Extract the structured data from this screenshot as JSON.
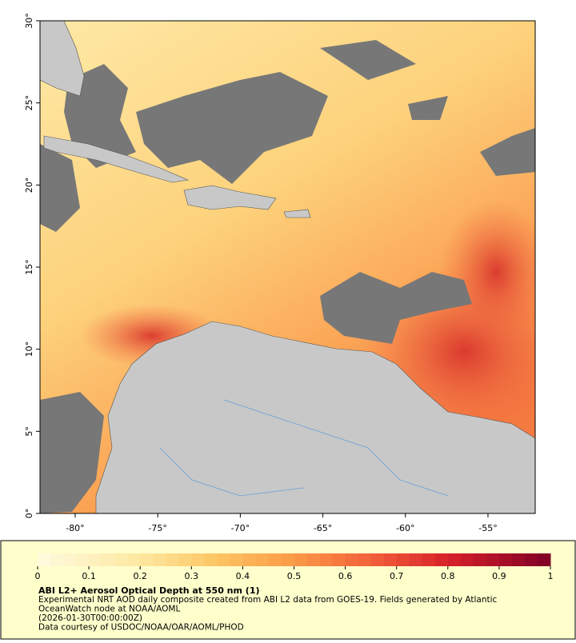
{
  "map": {
    "xlim": [
      -82.13,
      -52.14
    ],
    "ylim": [
      0,
      30
    ],
    "xticks": [
      {
        "value": -80,
        "label": "-80°"
      },
      {
        "value": -75,
        "label": "-75°"
      },
      {
        "value": -70,
        "label": "-70°"
      },
      {
        "value": -65,
        "label": "-65°"
      },
      {
        "value": -60,
        "label": "-60°"
      },
      {
        "value": -55,
        "label": "-55°"
      }
    ],
    "yticks": [
      {
        "value": 0,
        "label": "0°"
      },
      {
        "value": 5,
        "label": "5°"
      },
      {
        "value": 10,
        "label": "10°"
      },
      {
        "value": 15,
        "label": "15°"
      },
      {
        "value": 20,
        "label": "20°"
      },
      {
        "value": 25,
        "label": "25°"
      },
      {
        "value": 30,
        "label": "30°"
      }
    ]
  },
  "legend": {
    "title": "ABI L2+ Aerosol Optical Depth at 550 nm (1)",
    "notes": [
      "Experimental NRT AOD daily composite created from ABI L2 data from GOES-19. Fields generated by Atlantic",
      "OceanWatch node at NOAA/AOML",
      "(2026-01-30T00:00:00Z)",
      "Data courtesy of USDOC/NOAA/OAR/AOML/PHOD"
    ],
    "colorbar": {
      "lim": [
        0,
        1
      ],
      "ticks": [
        0,
        0.1,
        0.2,
        0.3,
        0.4,
        0.5,
        0.6,
        0.7,
        0.8,
        0.9,
        1
      ]
    }
  }
}
